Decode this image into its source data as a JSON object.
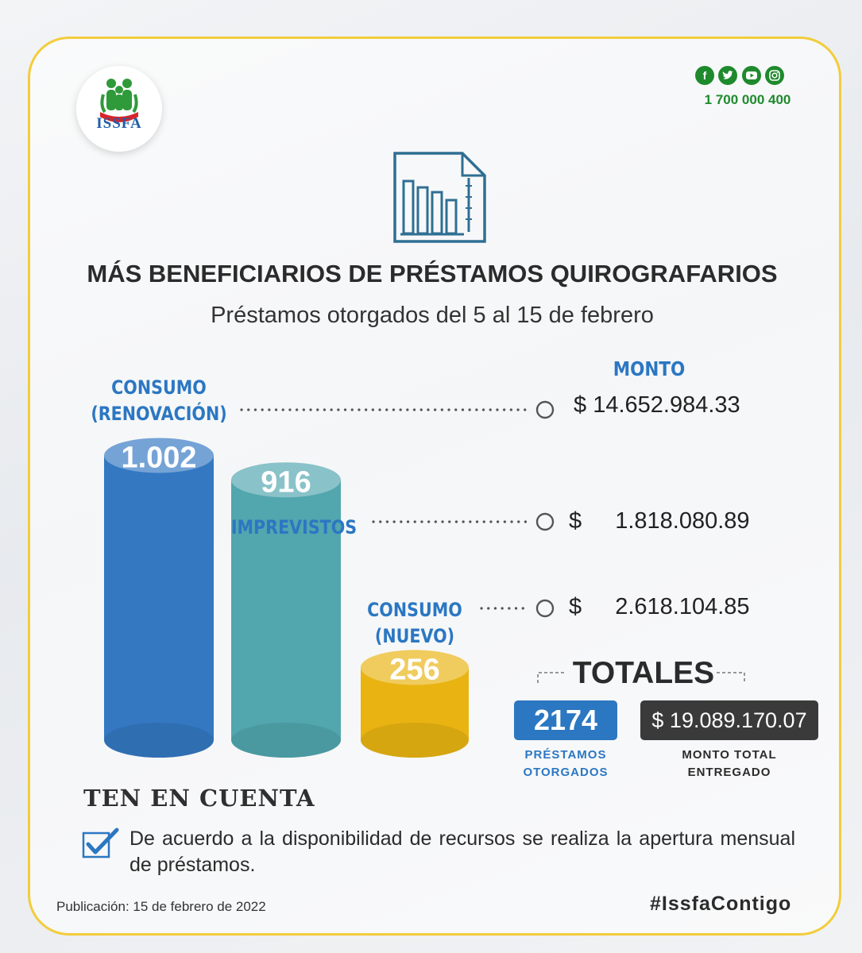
{
  "header": {
    "logo_text": "ISSFA",
    "social_icons": [
      "facebook-icon",
      "twitter-icon",
      "youtube-icon",
      "instagram-icon"
    ],
    "phone": "1 700 000 400"
  },
  "title": "MÁS BENEFICIARIOS DE PRÉSTAMOS QUIROGRAFARIOS",
  "subtitle": "Préstamos otorgados del 5 al 15 de febrero",
  "colors": {
    "accent": "#2b77c2",
    "frame": "#f2cd3c",
    "social": "#1e8a2d"
  },
  "chart_data": {
    "type": "bar",
    "categories": [
      "CONSUMO (RENOVACIÓN)",
      "IMPREVISTOS",
      "CONSUMO (NUEVO)"
    ],
    "category_lines": [
      [
        "CONSUMO",
        "(RENOVACIÓN)"
      ],
      [
        "IMPREVISTOS"
      ],
      [
        "CONSUMO",
        "(NUEVO)"
      ]
    ],
    "values": [
      1002,
      916,
      256
    ],
    "value_labels": [
      "1.002",
      "916",
      "256"
    ],
    "colors": [
      "#3478c2",
      "#52a6ae",
      "#e9b412"
    ],
    "monto_header": "MONTO",
    "currency": "$",
    "amounts": [
      "14.652.984.33",
      "1.818.080.89",
      "2.618.104.85"
    ]
  },
  "totals": {
    "heading": "TOTALES",
    "loans_value": "2174",
    "loans_label_1": "PRÉSTAMOS",
    "loans_label_2": "OTORGADOS",
    "amount_value": "$ 19.089.170.07",
    "amount_label_1": "MONTO TOTAL",
    "amount_label_2": "ENTREGADO"
  },
  "notice": {
    "heading": "TEN EN CUENTA",
    "text": "De acuerdo a la disponibilidad de recursos se realiza la apertura mensual de préstamos."
  },
  "footer": {
    "publication": "Publicación: 15 de febrero de 2022",
    "hashtag": "#IssfaContigo"
  }
}
